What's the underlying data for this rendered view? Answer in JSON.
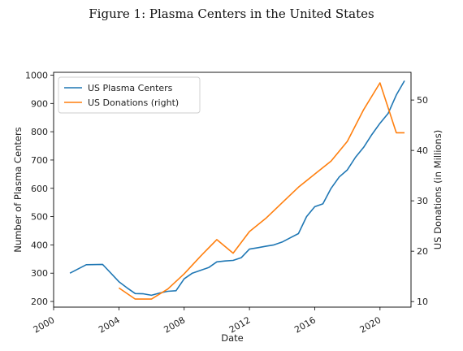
{
  "figure": {
    "caption": "Figure 1: Plasma Centers in the United States"
  },
  "chart_data": {
    "type": "line",
    "xlabel": "Date",
    "ylabel_left": "Number of Plasma Centers",
    "ylabel_right": "US Donations (in Millions)",
    "x_ticks": [
      "2000",
      "2004",
      "2008",
      "2012",
      "2016",
      "2020"
    ],
    "x_tick_values": [
      2000,
      2004,
      2008,
      2012,
      2016,
      2020
    ],
    "xlim": [
      2000,
      2021.9
    ],
    "ylim_left": [
      180,
      1010
    ],
    "ylim_right": [
      8.9,
      55.5
    ],
    "left_ticks": [
      "200",
      "300",
      "400",
      "500",
      "600",
      "700",
      "800",
      "900",
      "1000"
    ],
    "left_tick_values": [
      200,
      300,
      400,
      500,
      600,
      700,
      800,
      900,
      1000
    ],
    "right_ticks": [
      "10",
      "20",
      "30",
      "40",
      "50"
    ],
    "right_tick_values": [
      10,
      20,
      30,
      40,
      50
    ],
    "grid": false,
    "legend_position": "top-left",
    "series": [
      {
        "name": "US Plasma Centers",
        "axis": "left",
        "color": "#1f77b4",
        "x": [
          2001,
          2002,
          2003,
          2004,
          2004.5,
          2005,
          2005.5,
          2006,
          2006.5,
          2007,
          2007.5,
          2008,
          2008.5,
          2009,
          2009.5,
          2010,
          2010.5,
          2011,
          2011.5,
          2012,
          2012.5,
          2013,
          2013.5,
          2014,
          2014.5,
          2015,
          2015.5,
          2016,
          2016.5,
          2017,
          2017.5,
          2018,
          2018.5,
          2019,
          2019.5,
          2020,
          2020.5,
          2021,
          2021.5
        ],
        "y": [
          300,
          330,
          331,
          270,
          248,
          228,
          227,
          222,
          230,
          236,
          238,
          280,
          300,
          310,
          320,
          340,
          343,
          345,
          355,
          385,
          390,
          395,
          400,
          410,
          425,
          440,
          500,
          535,
          545,
          600,
          640,
          665,
          710,
          745,
          790,
          830,
          865,
          930,
          980
        ]
      },
      {
        "name": "US Donations (right)",
        "axis": "right",
        "color": "#ff7f0e",
        "x": [
          2004,
          2005,
          2006,
          2007,
          2008,
          2009,
          2010,
          2011,
          2012,
          2013,
          2014,
          2015,
          2016,
          2017,
          2018,
          2019,
          2020,
          2021,
          2021.5
        ],
        "y": [
          12.7,
          10.5,
          10.5,
          12.5,
          15.5,
          19.0,
          22.3,
          19.6,
          23.9,
          26.5,
          29.6,
          32.7,
          35.3,
          37.9,
          41.8,
          48.1,
          53.4,
          43.5,
          43.5
        ]
      }
    ]
  }
}
